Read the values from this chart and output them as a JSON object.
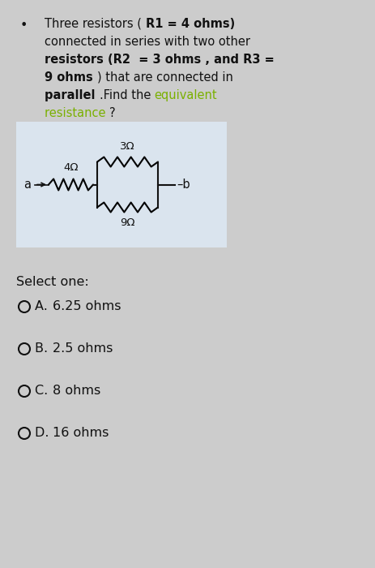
{
  "bg_color": "#cccccc",
  "circuit_bg": "#dde8f0",
  "text_color_black": "#111111",
  "text_color_green": "#7ab000",
  "select_one": "Select one:",
  "options": [
    [
      "A.  ",
      "6.25 ohms"
    ],
    [
      "B.  ",
      "2.5 ohms"
    ],
    [
      "C.  ",
      "8 ohms"
    ],
    [
      "D.  ",
      "16 ohms"
    ]
  ],
  "font_size_main": 10.5,
  "font_size_options": 11.5,
  "font_size_circuit": 9.5
}
